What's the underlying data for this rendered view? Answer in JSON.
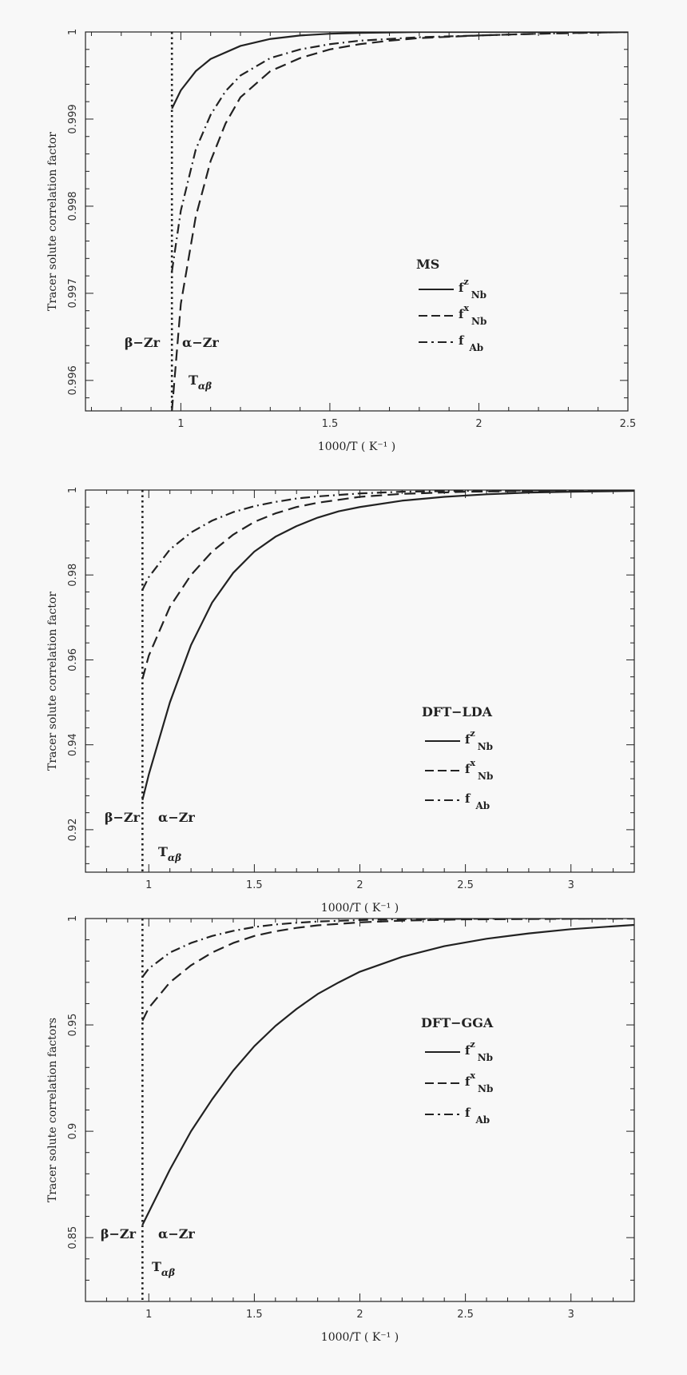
{
  "figure": {
    "background": "#f8f8f8",
    "ink": "#222222"
  },
  "chart_data": [
    {
      "type": "line",
      "xlabel": "1000/T ( K⁻¹ )",
      "ylabel": "Tracer solute correlation factor",
      "xlim": [
        0.68,
        2.5
      ],
      "ylim": [
        0.99565,
        1.0
      ],
      "xticks": [
        1,
        1.5,
        2,
        2.5
      ],
      "xtick_labels": [
        "1",
        "1.5",
        "2",
        "2.5"
      ],
      "yticks": [
        0.996,
        0.997,
        0.998,
        0.999,
        1
      ],
      "ytick_labels": [
        "0.996",
        "0.997",
        "0.998",
        "0.999",
        "1"
      ],
      "legend": {
        "title": "MS",
        "placement": "lower-right"
      },
      "transition": {
        "x": 0.97,
        "left_label": "β−Zr",
        "right_label": "α−Zr",
        "label": "Tαβ"
      },
      "series": [
        {
          "key": "fz",
          "name": "fᶻ Nb",
          "base": "f",
          "sup": "z",
          "sub": "Nb",
          "style": "solid",
          "x": [
            0.97,
            1.0,
            1.05,
            1.1,
            1.2,
            1.3,
            1.4,
            1.5,
            1.6,
            1.8,
            2.0,
            2.2,
            2.5
          ],
          "y": [
            0.99912,
            0.99933,
            0.99955,
            0.99969,
            0.99984,
            0.99992,
            0.99996,
            0.99998,
            0.99999,
            1.0,
            1.0,
            1.0,
            1.0
          ]
        },
        {
          "key": "fx",
          "name": "fˣ Nb",
          "base": "f",
          "sup": "x",
          "sub": "Nb",
          "style": "dashed",
          "x": [
            0.97,
            1.0,
            1.05,
            1.1,
            1.15,
            1.2,
            1.3,
            1.4,
            1.5,
            1.6,
            1.7,
            1.8,
            2.0,
            2.2,
            2.5
          ],
          "y": [
            0.99565,
            0.99688,
            0.99788,
            0.99852,
            0.99895,
            0.99925,
            0.99955,
            0.9997,
            0.9998,
            0.99986,
            0.9999,
            0.99993,
            0.99996,
            0.99998,
            1.0
          ]
        },
        {
          "key": "fab",
          "name": "f Ab",
          "base": "f",
          "sup": "",
          "sub": "Ab",
          "style": "dashdot",
          "x": [
            0.97,
            1.0,
            1.05,
            1.1,
            1.15,
            1.2,
            1.3,
            1.4,
            1.5,
            1.6,
            1.7,
            1.8,
            2.0,
            2.2,
            2.5
          ],
          "y": [
            0.99725,
            0.99795,
            0.99865,
            0.99905,
            0.99932,
            0.9995,
            0.9997,
            0.9998,
            0.99986,
            0.9999,
            0.99992,
            0.99994,
            0.99996,
            0.99998,
            1.0
          ]
        }
      ]
    },
    {
      "type": "line",
      "xlabel": "1000/T ( K⁻¹ )",
      "ylabel": "Tracer solute correlation factor",
      "xlim": [
        0.7,
        3.3
      ],
      "ylim": [
        0.91,
        1.0
      ],
      "xticks": [
        1,
        1.5,
        2,
        2.5,
        3
      ],
      "xtick_labels": [
        "1",
        "1.5",
        "2",
        "2.5",
        "3"
      ],
      "yticks": [
        0.92,
        0.94,
        0.96,
        0.98,
        1
      ],
      "ytick_labels": [
        "0.92",
        "0.94",
        "0.96",
        "0.98",
        "1"
      ],
      "legend": {
        "title": "DFT−LDA",
        "placement": "lower-right"
      },
      "transition": {
        "x": 0.97,
        "left_label": "β−Zr",
        "right_label": "α−Zr",
        "label": "Tαβ"
      },
      "series": [
        {
          "key": "fz",
          "name": "fᶻ Nb",
          "base": "f",
          "sup": "z",
          "sub": "Nb",
          "style": "solid",
          "x": [
            0.97,
            1.0,
            1.1,
            1.2,
            1.3,
            1.4,
            1.5,
            1.6,
            1.7,
            1.8,
            1.9,
            2.0,
            2.2,
            2.4,
            2.6,
            2.8,
            3.0,
            3.3
          ],
          "y": [
            0.927,
            0.933,
            0.95,
            0.9635,
            0.9735,
            0.9805,
            0.9855,
            0.989,
            0.9915,
            0.9935,
            0.995,
            0.996,
            0.9975,
            0.9984,
            0.999,
            0.9994,
            0.9996,
            0.9998
          ]
        },
        {
          "key": "fx",
          "name": "fˣ Nb",
          "base": "f",
          "sup": "x",
          "sub": "Nb",
          "style": "dashed",
          "x": [
            0.97,
            1.0,
            1.1,
            1.2,
            1.3,
            1.4,
            1.5,
            1.6,
            1.7,
            1.8,
            2.0,
            2.2,
            2.5,
            3.0,
            3.3
          ],
          "y": [
            0.9555,
            0.961,
            0.9725,
            0.98,
            0.9855,
            0.9895,
            0.9925,
            0.9945,
            0.996,
            0.997,
            0.9984,
            0.9991,
            0.9996,
            0.9999,
            1.0
          ]
        },
        {
          "key": "fab",
          "name": "f Ab",
          "base": "f",
          "sup": "",
          "sub": "Ab",
          "style": "dashdot",
          "x": [
            0.97,
            1.0,
            1.1,
            1.2,
            1.3,
            1.4,
            1.5,
            1.6,
            1.7,
            1.8,
            2.0,
            2.2,
            2.5,
            3.0,
            3.3
          ],
          "y": [
            0.9765,
            0.9795,
            0.986,
            0.99,
            0.9928,
            0.9948,
            0.9962,
            0.9972,
            0.998,
            0.9985,
            0.9992,
            0.9996,
            0.9998,
            1.0,
            1.0
          ]
        }
      ]
    },
    {
      "type": "line",
      "xlabel": "1000/T ( K⁻¹ )",
      "ylabel": "Tracer solute correlation factors",
      "xlim": [
        0.7,
        3.3
      ],
      "ylim": [
        0.82,
        1.0
      ],
      "xticks": [
        1,
        1.5,
        2,
        2.5,
        3
      ],
      "xtick_labels": [
        "1",
        "1.5",
        "2",
        "2.5",
        "3"
      ],
      "yticks": [
        0.85,
        0.9,
        0.95,
        1
      ],
      "ytick_labels": [
        "0.85",
        "0.9",
        "0.95",
        "1"
      ],
      "legend": {
        "title": "DFT−GGA",
        "placement": "right"
      },
      "transition": {
        "x": 0.97,
        "left_label": "β−Zr",
        "right_label": "α−Zr",
        "label": "Tαβ"
      },
      "series": [
        {
          "key": "fz",
          "name": "fᶻ Nb",
          "base": "f",
          "sup": "z",
          "sub": "Nb",
          "style": "solid",
          "x": [
            0.97,
            1.0,
            1.1,
            1.2,
            1.3,
            1.4,
            1.5,
            1.6,
            1.7,
            1.8,
            1.9,
            2.0,
            2.2,
            2.4,
            2.6,
            2.8,
            3.0,
            3.3
          ],
          "y": [
            0.856,
            0.862,
            0.882,
            0.9,
            0.915,
            0.9285,
            0.94,
            0.9495,
            0.9575,
            0.9645,
            0.97,
            0.975,
            0.982,
            0.987,
            0.9905,
            0.993,
            0.995,
            0.997
          ]
        },
        {
          "key": "fx",
          "name": "fˣ Nb",
          "base": "f",
          "sup": "x",
          "sub": "Nb",
          "style": "dashed",
          "x": [
            0.97,
            1.0,
            1.1,
            1.2,
            1.3,
            1.4,
            1.5,
            1.6,
            1.7,
            1.8,
            2.0,
            2.2,
            2.5,
            3.0,
            3.3
          ],
          "y": [
            0.952,
            0.958,
            0.97,
            0.978,
            0.984,
            0.9885,
            0.9918,
            0.994,
            0.9956,
            0.9968,
            0.9982,
            0.999,
            0.9996,
            0.9999,
            1.0
          ]
        },
        {
          "key": "fab",
          "name": "f Ab",
          "base": "f",
          "sup": "",
          "sub": "Ab",
          "style": "dashdot",
          "x": [
            0.97,
            1.0,
            1.1,
            1.2,
            1.3,
            1.4,
            1.5,
            1.6,
            1.7,
            1.8,
            2.0,
            2.2,
            2.5,
            3.0,
            3.3
          ],
          "y": [
            0.9725,
            0.9765,
            0.984,
            0.9885,
            0.9918,
            0.9942,
            0.996,
            0.9972,
            0.998,
            0.9986,
            0.9993,
            0.9997,
            0.9999,
            1.0,
            1.0
          ]
        }
      ]
    }
  ]
}
